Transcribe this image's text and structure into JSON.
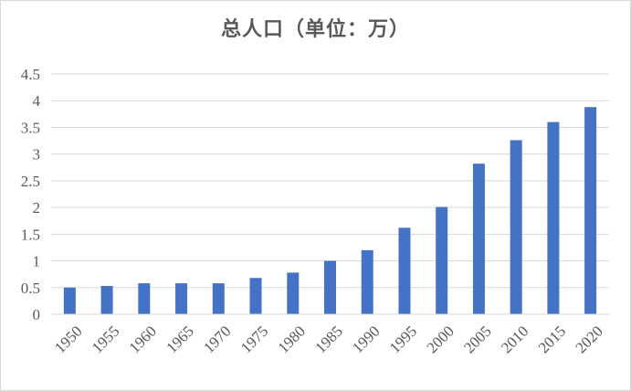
{
  "chart_data": {
    "type": "bar",
    "title": "总人口（单位：万）",
    "categories": [
      "1950",
      "1955",
      "1960",
      "1965",
      "1970",
      "1975",
      "1980",
      "1985",
      "1990",
      "1995",
      "2000",
      "2005",
      "2010",
      "2015",
      "2020"
    ],
    "values": [
      0.5,
      0.53,
      0.58,
      0.58,
      0.58,
      0.68,
      0.78,
      1.0,
      1.2,
      1.62,
      2.01,
      2.82,
      3.26,
      3.6,
      3.88
    ],
    "y_ticks": [
      "0",
      "0.5",
      "1",
      "1.5",
      "2",
      "2.5",
      "3",
      "3.5",
      "4",
      "4.5"
    ],
    "ylim": [
      0,
      4.5
    ],
    "grid": true,
    "bar_color": "#4472c4",
    "grid_color": "#d9d9d9",
    "legend": "none"
  }
}
